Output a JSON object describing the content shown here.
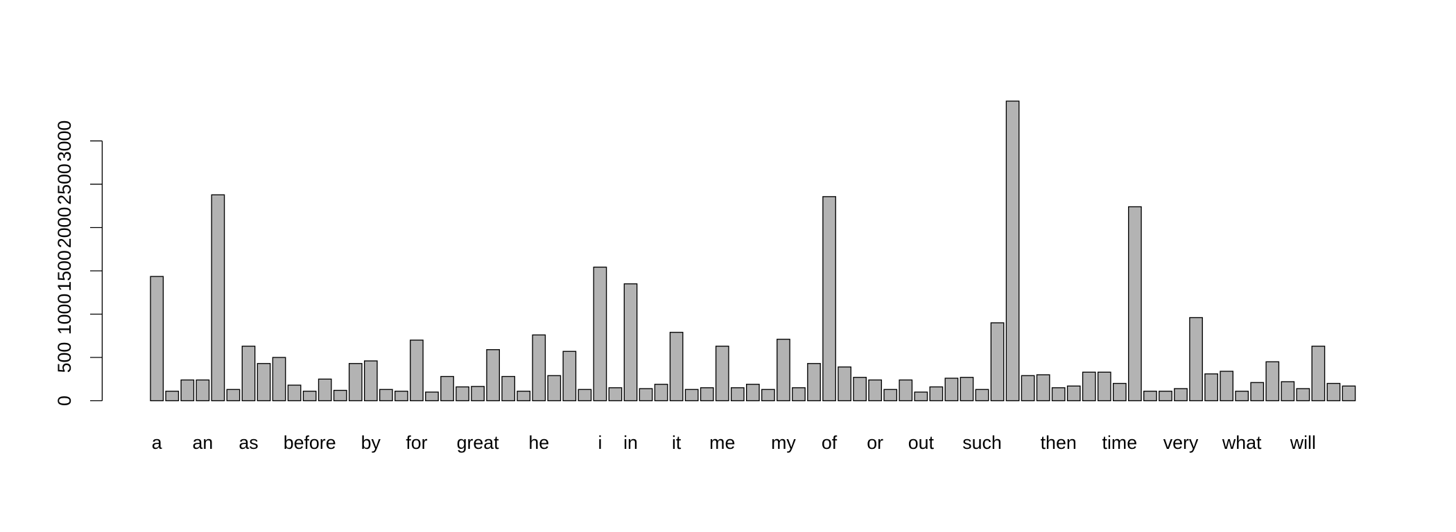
{
  "chart_data": {
    "type": "bar",
    "categories": [
      "a",
      null,
      null,
      "an",
      null,
      null,
      "as",
      null,
      null,
      null,
      "before",
      null,
      null,
      null,
      "by",
      null,
      null,
      "for",
      null,
      null,
      null,
      "great",
      null,
      null,
      null,
      "he",
      null,
      null,
      null,
      "i",
      null,
      "in",
      null,
      null,
      "it",
      null,
      null,
      "me",
      null,
      null,
      null,
      "my",
      null,
      null,
      "of",
      null,
      null,
      "or",
      null,
      null,
      "out",
      null,
      null,
      null,
      "such",
      null,
      null,
      null,
      null,
      "then",
      null,
      null,
      null,
      "time",
      null,
      null,
      null,
      "very",
      null,
      null,
      null,
      "what",
      null,
      null,
      null,
      "will",
      null,
      null,
      null
    ],
    "values": [
      1435,
      110,
      240,
      240,
      2378,
      130,
      630,
      430,
      500,
      180,
      110,
      250,
      120,
      430,
      460,
      130,
      110,
      700,
      100,
      280,
      160,
      165,
      590,
      280,
      110,
      760,
      290,
      570,
      130,
      1543,
      150,
      1350,
      140,
      190,
      790,
      130,
      150,
      630,
      150,
      190,
      130,
      710,
      150,
      430,
      2357,
      390,
      270,
      240,
      130,
      240,
      100,
      160,
      260,
      270,
      130,
      900,
      3460,
      290,
      300,
      150,
      170,
      330,
      330,
      200,
      2240,
      110,
      110,
      140,
      960,
      310,
      340,
      110,
      210,
      450,
      220,
      140,
      630,
      200,
      170
    ],
    "color": "#b3b3b3",
    "ylim": [
      0,
      3460
    ],
    "yticks": [
      0,
      500,
      1000,
      1500,
      2000,
      2500,
      3000
    ]
  }
}
